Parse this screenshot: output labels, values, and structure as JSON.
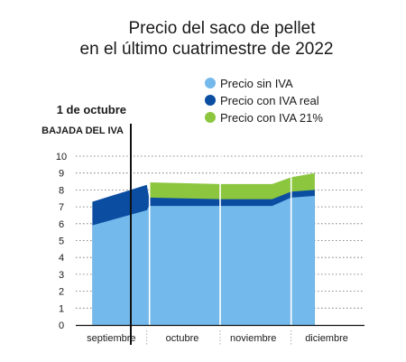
{
  "chart_data": {
    "type": "area",
    "title": "Precio del saco de pellet en el último cuatrimestre de 2022",
    "title_lines": [
      "Precio del saco de pellet",
      "en el último cuatrimestre de 2022"
    ],
    "xlabel": "",
    "ylabel": "",
    "ylim": [
      0,
      10
    ],
    "yticks": [
      0,
      1,
      2,
      3,
      4,
      5,
      6,
      7,
      8,
      9,
      10
    ],
    "grid": true,
    "legend_position": "top-right",
    "categories": [
      "septiembre",
      "octubre",
      "noviembre",
      "diciembre"
    ],
    "x": [
      "2022-09-08",
      "2022-10-01",
      "2022-10-02",
      "2022-11-01",
      "2022-11-23",
      "2022-12-01",
      "2022-12-11"
    ],
    "series": [
      {
        "name": "Precio sin IVA",
        "color": "#74b9eb",
        "values": [
          5.9,
          6.8,
          7.05,
          7.05,
          7.05,
          7.55,
          7.65
        ]
      },
      {
        "name": "Precio con IVA real",
        "color": "#0b4da1",
        "values": [
          7.3,
          8.3,
          7.55,
          7.45,
          7.45,
          7.9,
          8.0
        ]
      },
      {
        "name": "Precio con IVA 21%",
        "color": "#8cc63f",
        "values": [
          null,
          null,
          8.45,
          8.35,
          8.35,
          8.75,
          9.0
        ]
      }
    ],
    "annotation": {
      "date_label": "1 de octubre",
      "event_label": "BAJADA DEL IVA"
    }
  }
}
